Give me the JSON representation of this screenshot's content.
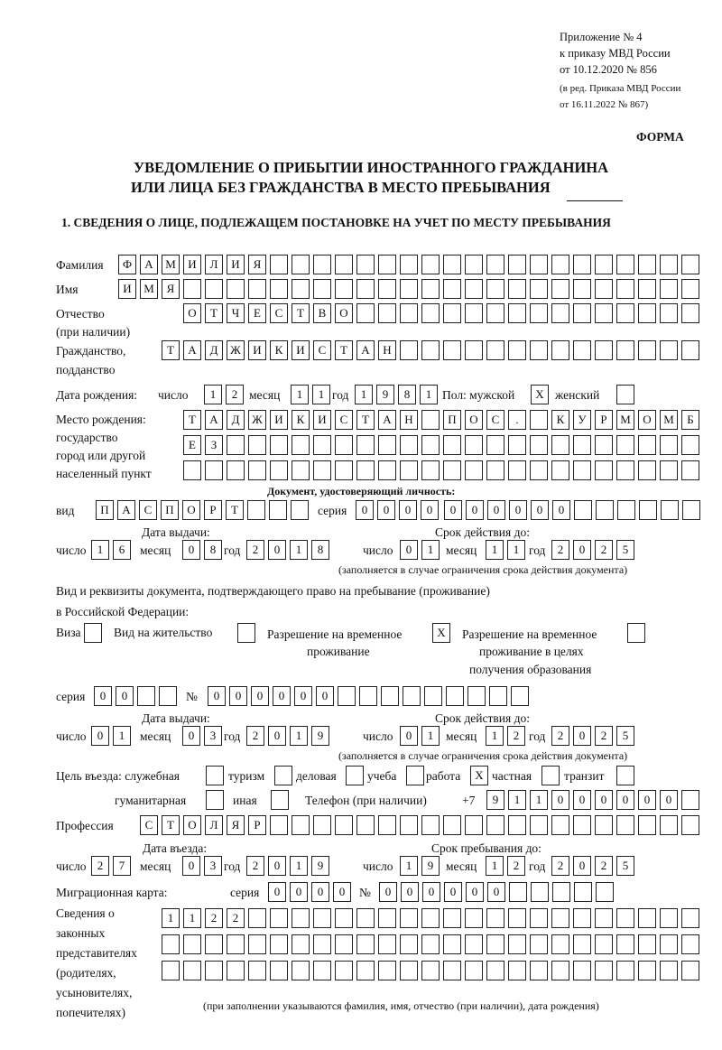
{
  "header": {
    "appendix": "Приложение № 4",
    "order": "к приказу МВД России",
    "order_date": "от 10.12.2020 № 856",
    "edition": "(в ред. Приказа МВД России",
    "edition_date": "от 16.11.2022 № 867)",
    "form_label": "ФОРМА",
    "title_line1": "УВЕДОМЛЕНИЕ О ПРИБЫТИИ ИНОСТРАННОГО ГРАЖДАНИНА",
    "title_line2": "ИЛИ ЛИЦА БЕЗ ГРАЖДАНСТВА В МЕСТО ПРЕБЫВАНИЯ"
  },
  "section1": {
    "heading": "1. СВЕДЕНИЯ О ЛИЦЕ, ПОДЛЕЖАЩЕМ ПОСТАНОВКЕ НА УЧЕТ ПО МЕСТУ ПРЕБЫВАНИЯ"
  },
  "labels": {
    "surname": "Фамилия",
    "name": "Имя",
    "patronymic": "Отчество",
    "patronymic_note": "(при наличии)",
    "citizenship": "Гражданство,",
    "citizenship2": "подданство",
    "birth_date": "Дата рождения:",
    "day": "число",
    "month": "месяц",
    "year": "год",
    "sex_male": "Пол: мужской",
    "sex_female": "женский",
    "birthplace1": "Место рождения:",
    "birthplace2": "государство",
    "birthplace3": "город или другой",
    "birthplace4": "населенный пункт",
    "identity_doc": "Документ, удостоверяющий личность:",
    "doc_type": "вид",
    "series": "серия",
    "number": "№",
    "issue_date": "Дата выдачи:",
    "valid_until": "Срок действия до:",
    "valid_note": "(заполняется в случае ограничения срока действия документа)",
    "stay_doc1": "Вид и реквизиты документа, подтверждающего право на пребывание (проживание)",
    "stay_doc2": "в Российской Федерации:",
    "visa": "Виза",
    "residence_permit": "Вид на жительство",
    "temp_residence1": "Разрешение на временное",
    "temp_residence2": "проживание",
    "temp_edu1": "Разрешение на временное",
    "temp_edu2": "проживание в целях",
    "temp_edu3": "получения образования",
    "purpose": "Цель въезда: служебная",
    "tourism": "туризм",
    "business": "деловая",
    "study": "учеба",
    "work": "работа",
    "private": "частная",
    "transit": "транзит",
    "humanitarian": "гуманитарная",
    "other": "иная",
    "phone": "Телефон (при наличии)",
    "phone_prefix": "+7",
    "profession": "Профессия",
    "entry_date": "Дата въезда:",
    "stay_until": "Срок пребывания до:",
    "migration_card": "Миграционная карта:",
    "reps1": "Сведения о",
    "reps2": "законных",
    "reps3": "представителях",
    "reps4": "(родителях,",
    "reps5": "усыновителях,",
    "reps6": "попечителях)",
    "reps_note": "(при заполнении указываются фамилия, имя, отчество (при наличии), дата рождения)"
  },
  "person": {
    "surname": "ФАМИЛИЯ",
    "name": "ИМЯ",
    "patronymic": "ОТЧЕСТВО",
    "citizenship": "ТАДЖИКИСТАН",
    "birth_day": "12",
    "birth_month": "11",
    "birth_year": "1981",
    "sex_male": "X",
    "sex_female": "",
    "birthplace_line1": "ТАДЖИКИСТАН ПОС. КУРМОМБ",
    "birthplace_line2": "ЕЗ",
    "birthplace_line3": ""
  },
  "identity_document": {
    "type": "ПАСПОРТ",
    "series": "0000",
    "number": "000000",
    "issue_day": "16",
    "issue_month": "08",
    "issue_year": "2018",
    "valid_day": "01",
    "valid_month": "11",
    "valid_year": "2025"
  },
  "stay_document": {
    "visa": "",
    "residence_permit": "",
    "temporary_residence": "X",
    "temporary_residence_education": "",
    "series": "00",
    "number": "000000",
    "issue_day": "01",
    "issue_month": "03",
    "issue_year": "2019",
    "valid_day": "01",
    "valid_month": "12",
    "valid_year": "2025"
  },
  "purpose": {
    "service": "",
    "tourism": "",
    "business": "",
    "study": "",
    "work": "X",
    "private": "",
    "transit": "",
    "humanitarian": "",
    "other": ""
  },
  "phone": "911000000",
  "profession": "СТОЛЯР",
  "entry": {
    "entry_day": "27",
    "entry_month": "03",
    "entry_year": "2019",
    "until_day": "19",
    "until_month": "12",
    "until_year": "2025"
  },
  "migration_card": {
    "series": "0000",
    "number": "000000"
  },
  "representatives": {
    "line1": "1122",
    "line2": "",
    "line3": ""
  }
}
